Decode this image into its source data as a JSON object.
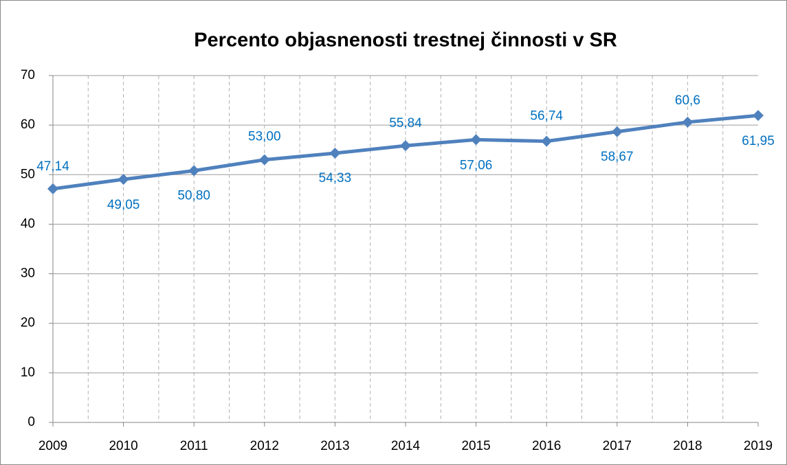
{
  "chart_data": {
    "type": "line",
    "title": "Percento objasnenosti trestnej činnosti v SR",
    "categories": [
      "2009",
      "2010",
      "2011",
      "2012",
      "2013",
      "2014",
      "2015",
      "2016",
      "2017",
      "2018",
      "2019"
    ],
    "series": [
      {
        "name": null,
        "color": "#4f81bd",
        "values": [
          47.14,
          49.05,
          50.8,
          53.0,
          54.33,
          55.84,
          57.06,
          56.74,
          58.67,
          60.6,
          61.95
        ],
        "value_labels": [
          "47,14",
          "49,05",
          "50,80",
          "53,00",
          "54,33",
          "55,84",
          "57,06",
          "56,74",
          "58,67",
          "60,6",
          "61,95"
        ]
      }
    ],
    "label_color": "#0070c0",
    "ylim": [
      0,
      70
    ],
    "yticks": [
      0,
      10,
      20,
      30,
      40,
      50,
      60,
      70
    ],
    "grid": true
  }
}
